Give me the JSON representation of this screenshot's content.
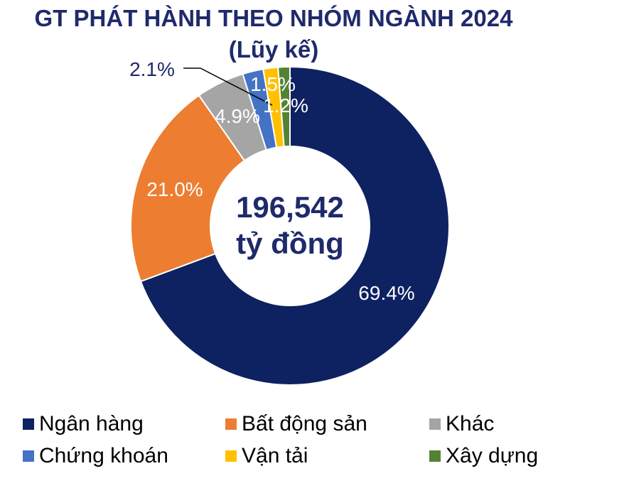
{
  "title": "GT PHÁT HÀNH THEO NHÓM NGÀNH 2024",
  "subtitle": "(Lũy kế)",
  "chart_data": {
    "type": "pie",
    "variant": "donut",
    "center_value": "196,542",
    "center_unit": "tỷ đồng",
    "categories": [
      "Ngân hàng",
      "Bất động sản",
      "Khác",
      "Chứng khoán",
      "Vận tải",
      "Xây dựng"
    ],
    "values": [
      69.4,
      21.0,
      4.9,
      2.1,
      1.5,
      1.2
    ],
    "labels": [
      "69.4%",
      "21.0%",
      "4.9%",
      "2.1%",
      "1.5%",
      "1.2%"
    ],
    "colors": [
      "#0e2161",
      "#ed7d31",
      "#a5a5a5",
      "#4472c4",
      "#ffc000",
      "#548235"
    ],
    "legend_position": "bottom"
  }
}
